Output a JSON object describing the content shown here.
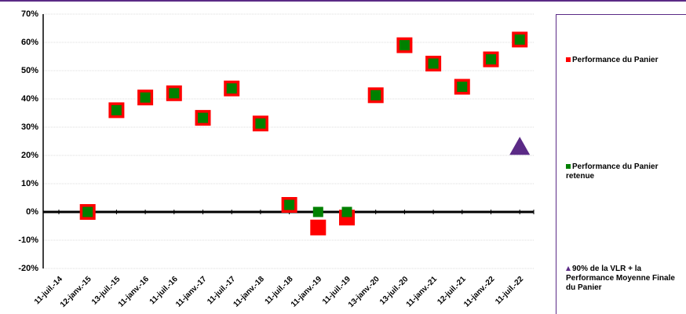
{
  "chart_data": {
    "type": "scatter",
    "categories": [
      "11-juil.-14",
      "12-janv.-15",
      "13-juil.-15",
      "11-janv.-16",
      "11-juil.-16",
      "11-janv.-17",
      "11-juil.-17",
      "11-janv.-18",
      "11-juil.-18",
      "11-janv.-19",
      "11-juil.-19",
      "13-janv.-20",
      "13-juil.-20",
      "11-janv.-21",
      "12-juil.-21",
      "11-janv.-22",
      "11-juil.-22"
    ],
    "series": [
      {
        "name": "Performance du Panier",
        "color": "#ff0000",
        "marker": "square-large",
        "values": [
          null,
          0,
          36,
          40.5,
          42,
          33.3,
          43.7,
          31.3,
          2.5,
          -5.5,
          -2,
          41.3,
          59,
          52.5,
          44.3,
          54,
          61
        ]
      },
      {
        "name": "Performance du Panier retenue",
        "color": "#008000",
        "marker": "square",
        "values": [
          null,
          0,
          36,
          40.5,
          42,
          33.3,
          43.7,
          31.3,
          2.5,
          0,
          0,
          41.3,
          59,
          52.5,
          44.3,
          54,
          61
        ]
      },
      {
        "name": "90% de la VLR + la Performance Moyenne Finale du Panier",
        "color": "#5b2a86",
        "marker": "triangle",
        "values": [
          null,
          null,
          null,
          null,
          null,
          null,
          null,
          null,
          null,
          null,
          null,
          null,
          null,
          null,
          null,
          null,
          23
        ]
      }
    ],
    "ylim": [
      -20,
      70
    ],
    "yticks": [
      {
        "value": -20,
        "label": "-20%"
      },
      {
        "value": -10,
        "label": "-10%"
      },
      {
        "value": 0,
        "label": "0%"
      },
      {
        "value": 10,
        "label": "10%"
      },
      {
        "value": 20,
        "label": "20%"
      },
      {
        "value": 30,
        "label": "30%"
      },
      {
        "value": 40,
        "label": "40%"
      },
      {
        "value": 50,
        "label": "50%"
      },
      {
        "value": 60,
        "label": "60%"
      },
      {
        "value": 70,
        "label": "70%"
      }
    ],
    "grid": true,
    "legend": "right"
  }
}
